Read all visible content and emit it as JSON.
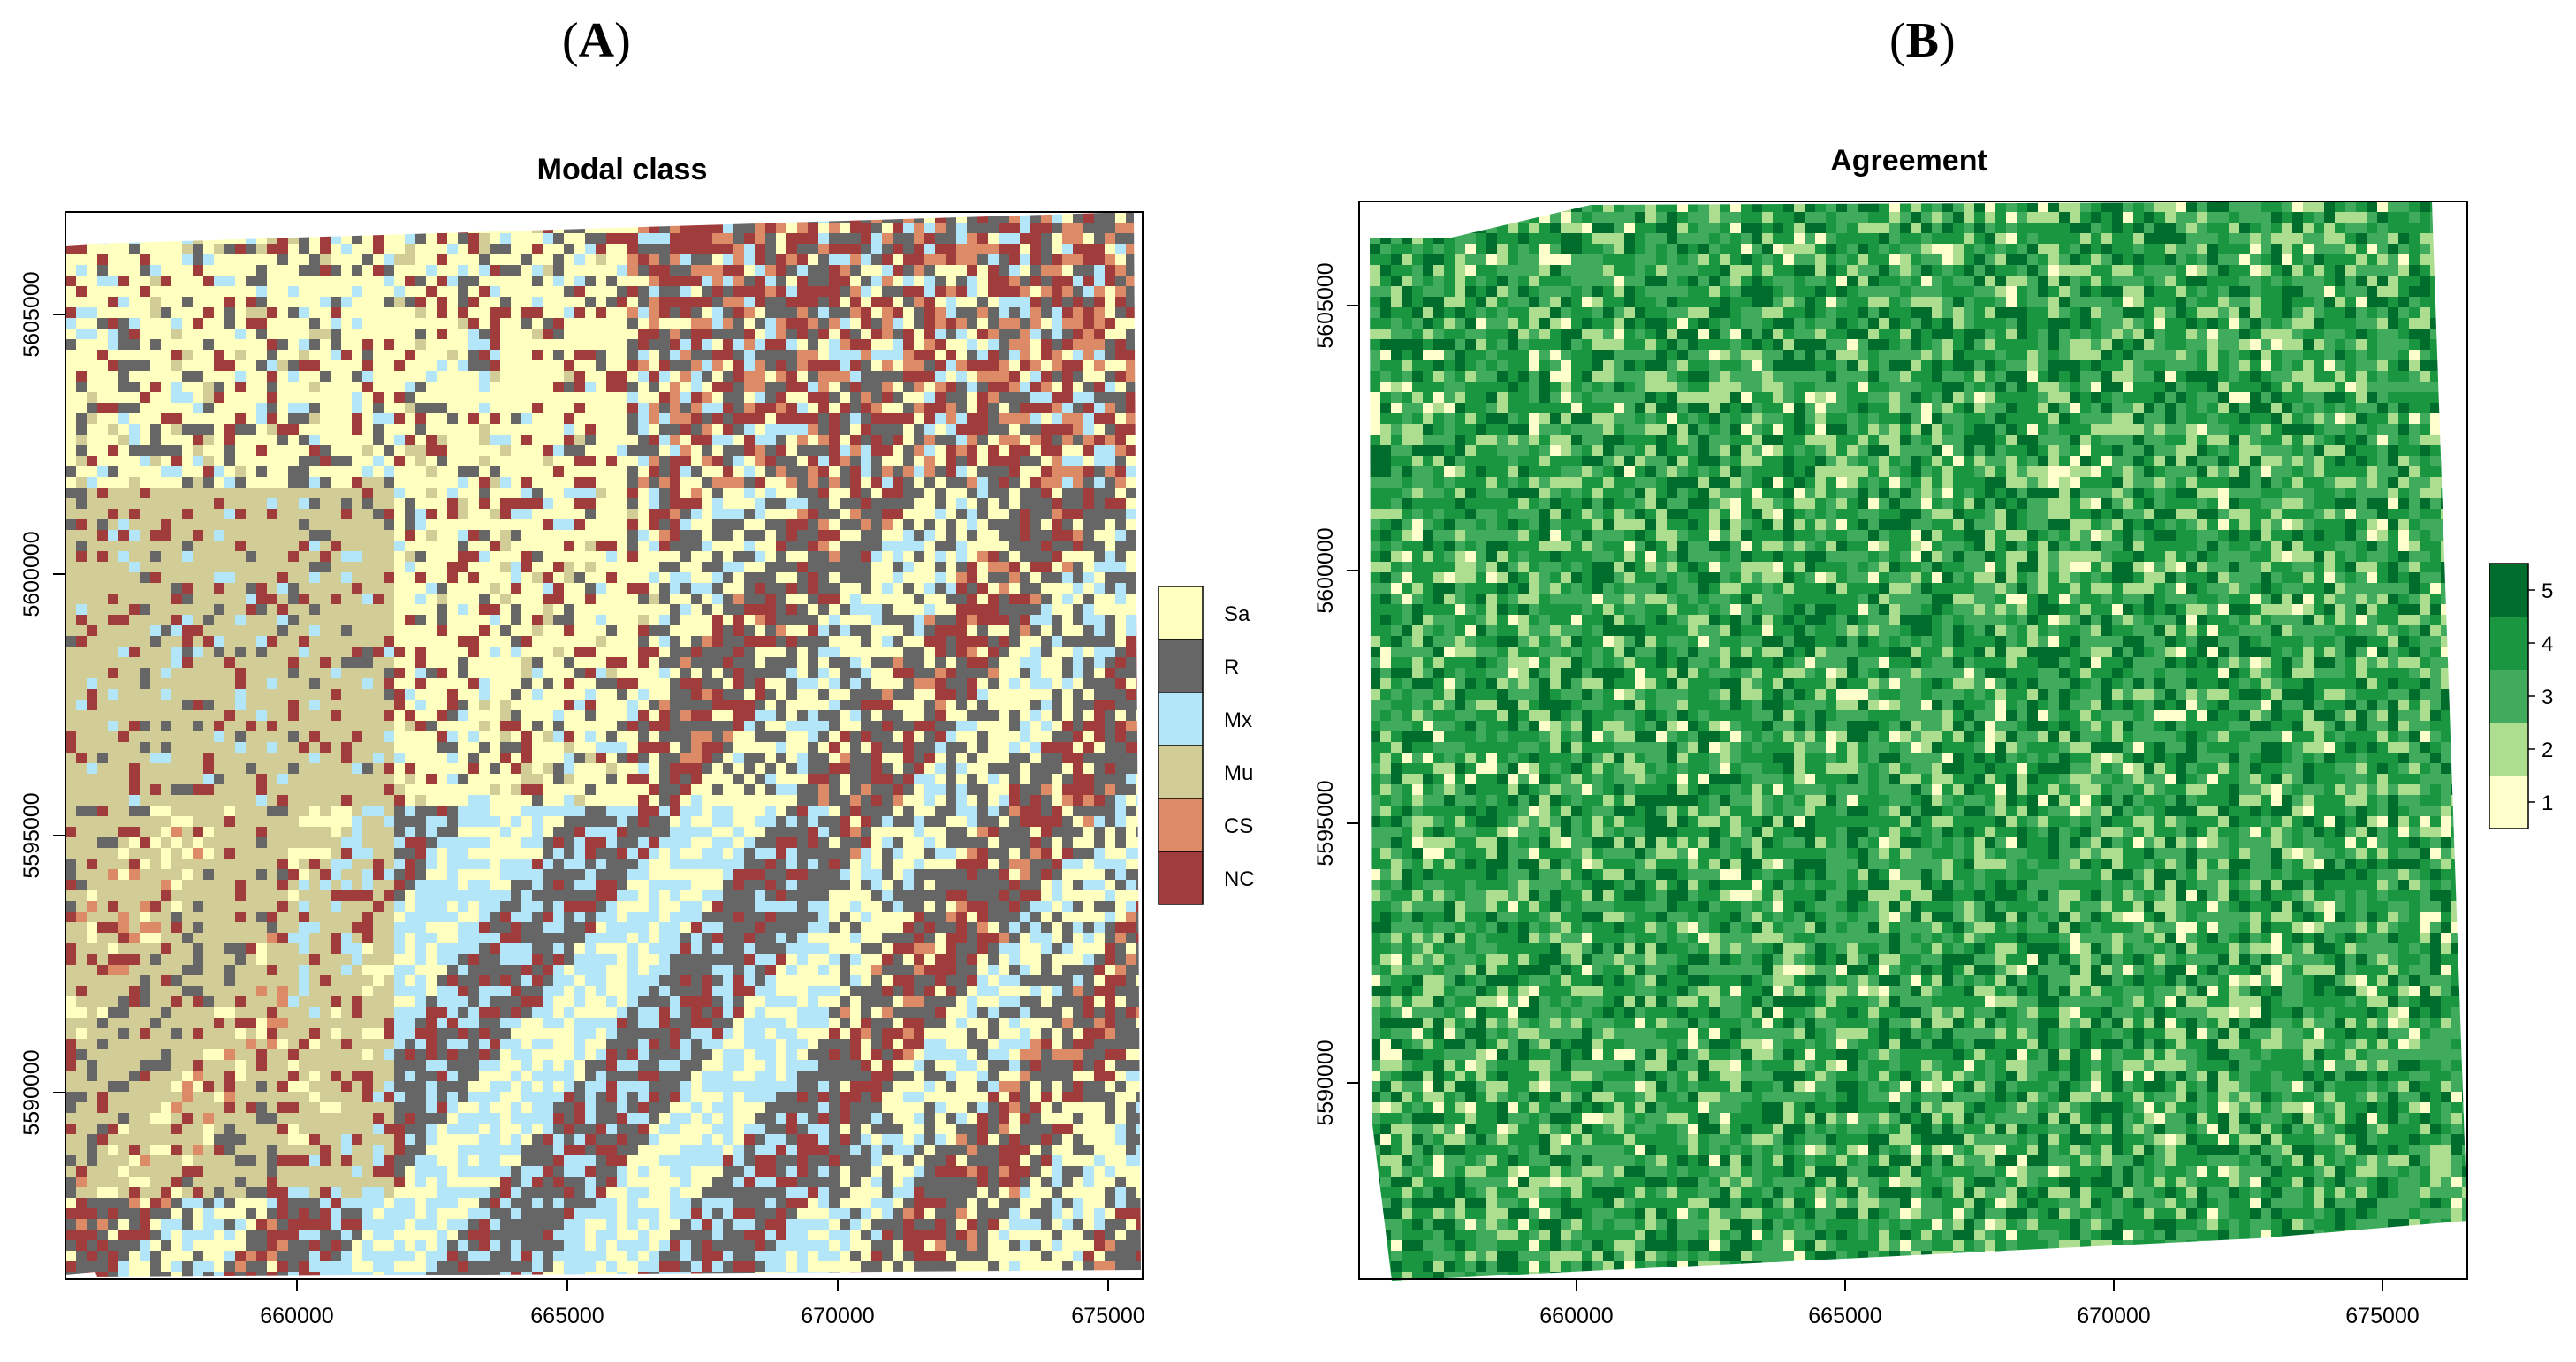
{
  "panels": [
    {
      "panel_label": "A",
      "title": "Modal class",
      "x_ticks": [
        "660000",
        "665000",
        "670000",
        "675000"
      ],
      "y_ticks": [
        "5590000",
        "5595000",
        "5600000",
        "5605000"
      ],
      "legend": [
        {
          "label": "Sa",
          "color": "#ffffc0"
        },
        {
          "label": "R",
          "color": "#666666"
        },
        {
          "label": "Mx",
          "color": "#b4e6fa"
        },
        {
          "label": "Mu",
          "color": "#d2cd96"
        },
        {
          "label": "CS",
          "color": "#dd8a66"
        },
        {
          "label": "NC",
          "color": "#a03c3c"
        }
      ]
    },
    {
      "panel_label": "B",
      "title": "Agreement",
      "x_ticks": [
        "660000",
        "665000",
        "670000",
        "675000"
      ],
      "y_ticks": [
        "5590000",
        "5595000",
        "5600000",
        "5605000"
      ],
      "legend": [
        {
          "label": "5",
          "color": "#006d2c"
        },
        {
          "label": "4",
          "color": "#1a9641"
        },
        {
          "label": "3",
          "color": "#41ab5d"
        },
        {
          "label": "2",
          "color": "#addd8e"
        },
        {
          "label": "1",
          "color": "#ffffcc"
        }
      ]
    }
  ]
}
